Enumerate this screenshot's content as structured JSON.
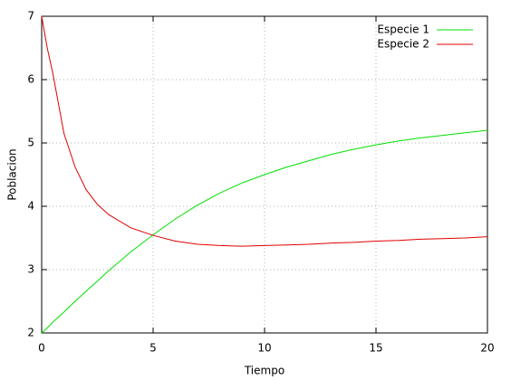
{
  "chart_data": {
    "type": "line",
    "x_label": "Tiempo",
    "y_label": "Poblacion",
    "x": [
      0,
      0.25,
      0.5,
      1,
      1.5,
      2,
      2.5,
      3,
      4,
      5,
      6,
      7,
      8,
      9,
      10,
      11,
      12,
      13,
      14,
      15,
      16,
      17,
      18,
      19,
      20
    ],
    "series": [
      {
        "name": "Especie 1",
        "color": "#00e000",
        "values": [
          2.0,
          2.08,
          2.17,
          2.33,
          2.5,
          2.66,
          2.82,
          2.98,
          3.28,
          3.55,
          3.8,
          4.02,
          4.21,
          4.37,
          4.5,
          4.62,
          4.72,
          4.82,
          4.9,
          4.97,
          5.03,
          5.08,
          5.12,
          5.16,
          5.2
        ]
      },
      {
        "name": "Especie 2",
        "color": "#e00000",
        "values": [
          7.0,
          6.5,
          6.1,
          5.15,
          4.62,
          4.26,
          4.03,
          3.87,
          3.66,
          3.54,
          3.45,
          3.4,
          3.38,
          3.37,
          3.38,
          3.39,
          3.4,
          3.42,
          3.43,
          3.45,
          3.46,
          3.48,
          3.49,
          3.5,
          3.52
        ]
      }
    ],
    "xlim": [
      0,
      20
    ],
    "xticks": [
      0,
      5,
      10,
      15,
      20
    ],
    "ylim": [
      2,
      7
    ],
    "yticks": [
      2,
      3,
      4,
      5,
      6,
      7
    ],
    "grid": true,
    "legend": "top-right"
  }
}
